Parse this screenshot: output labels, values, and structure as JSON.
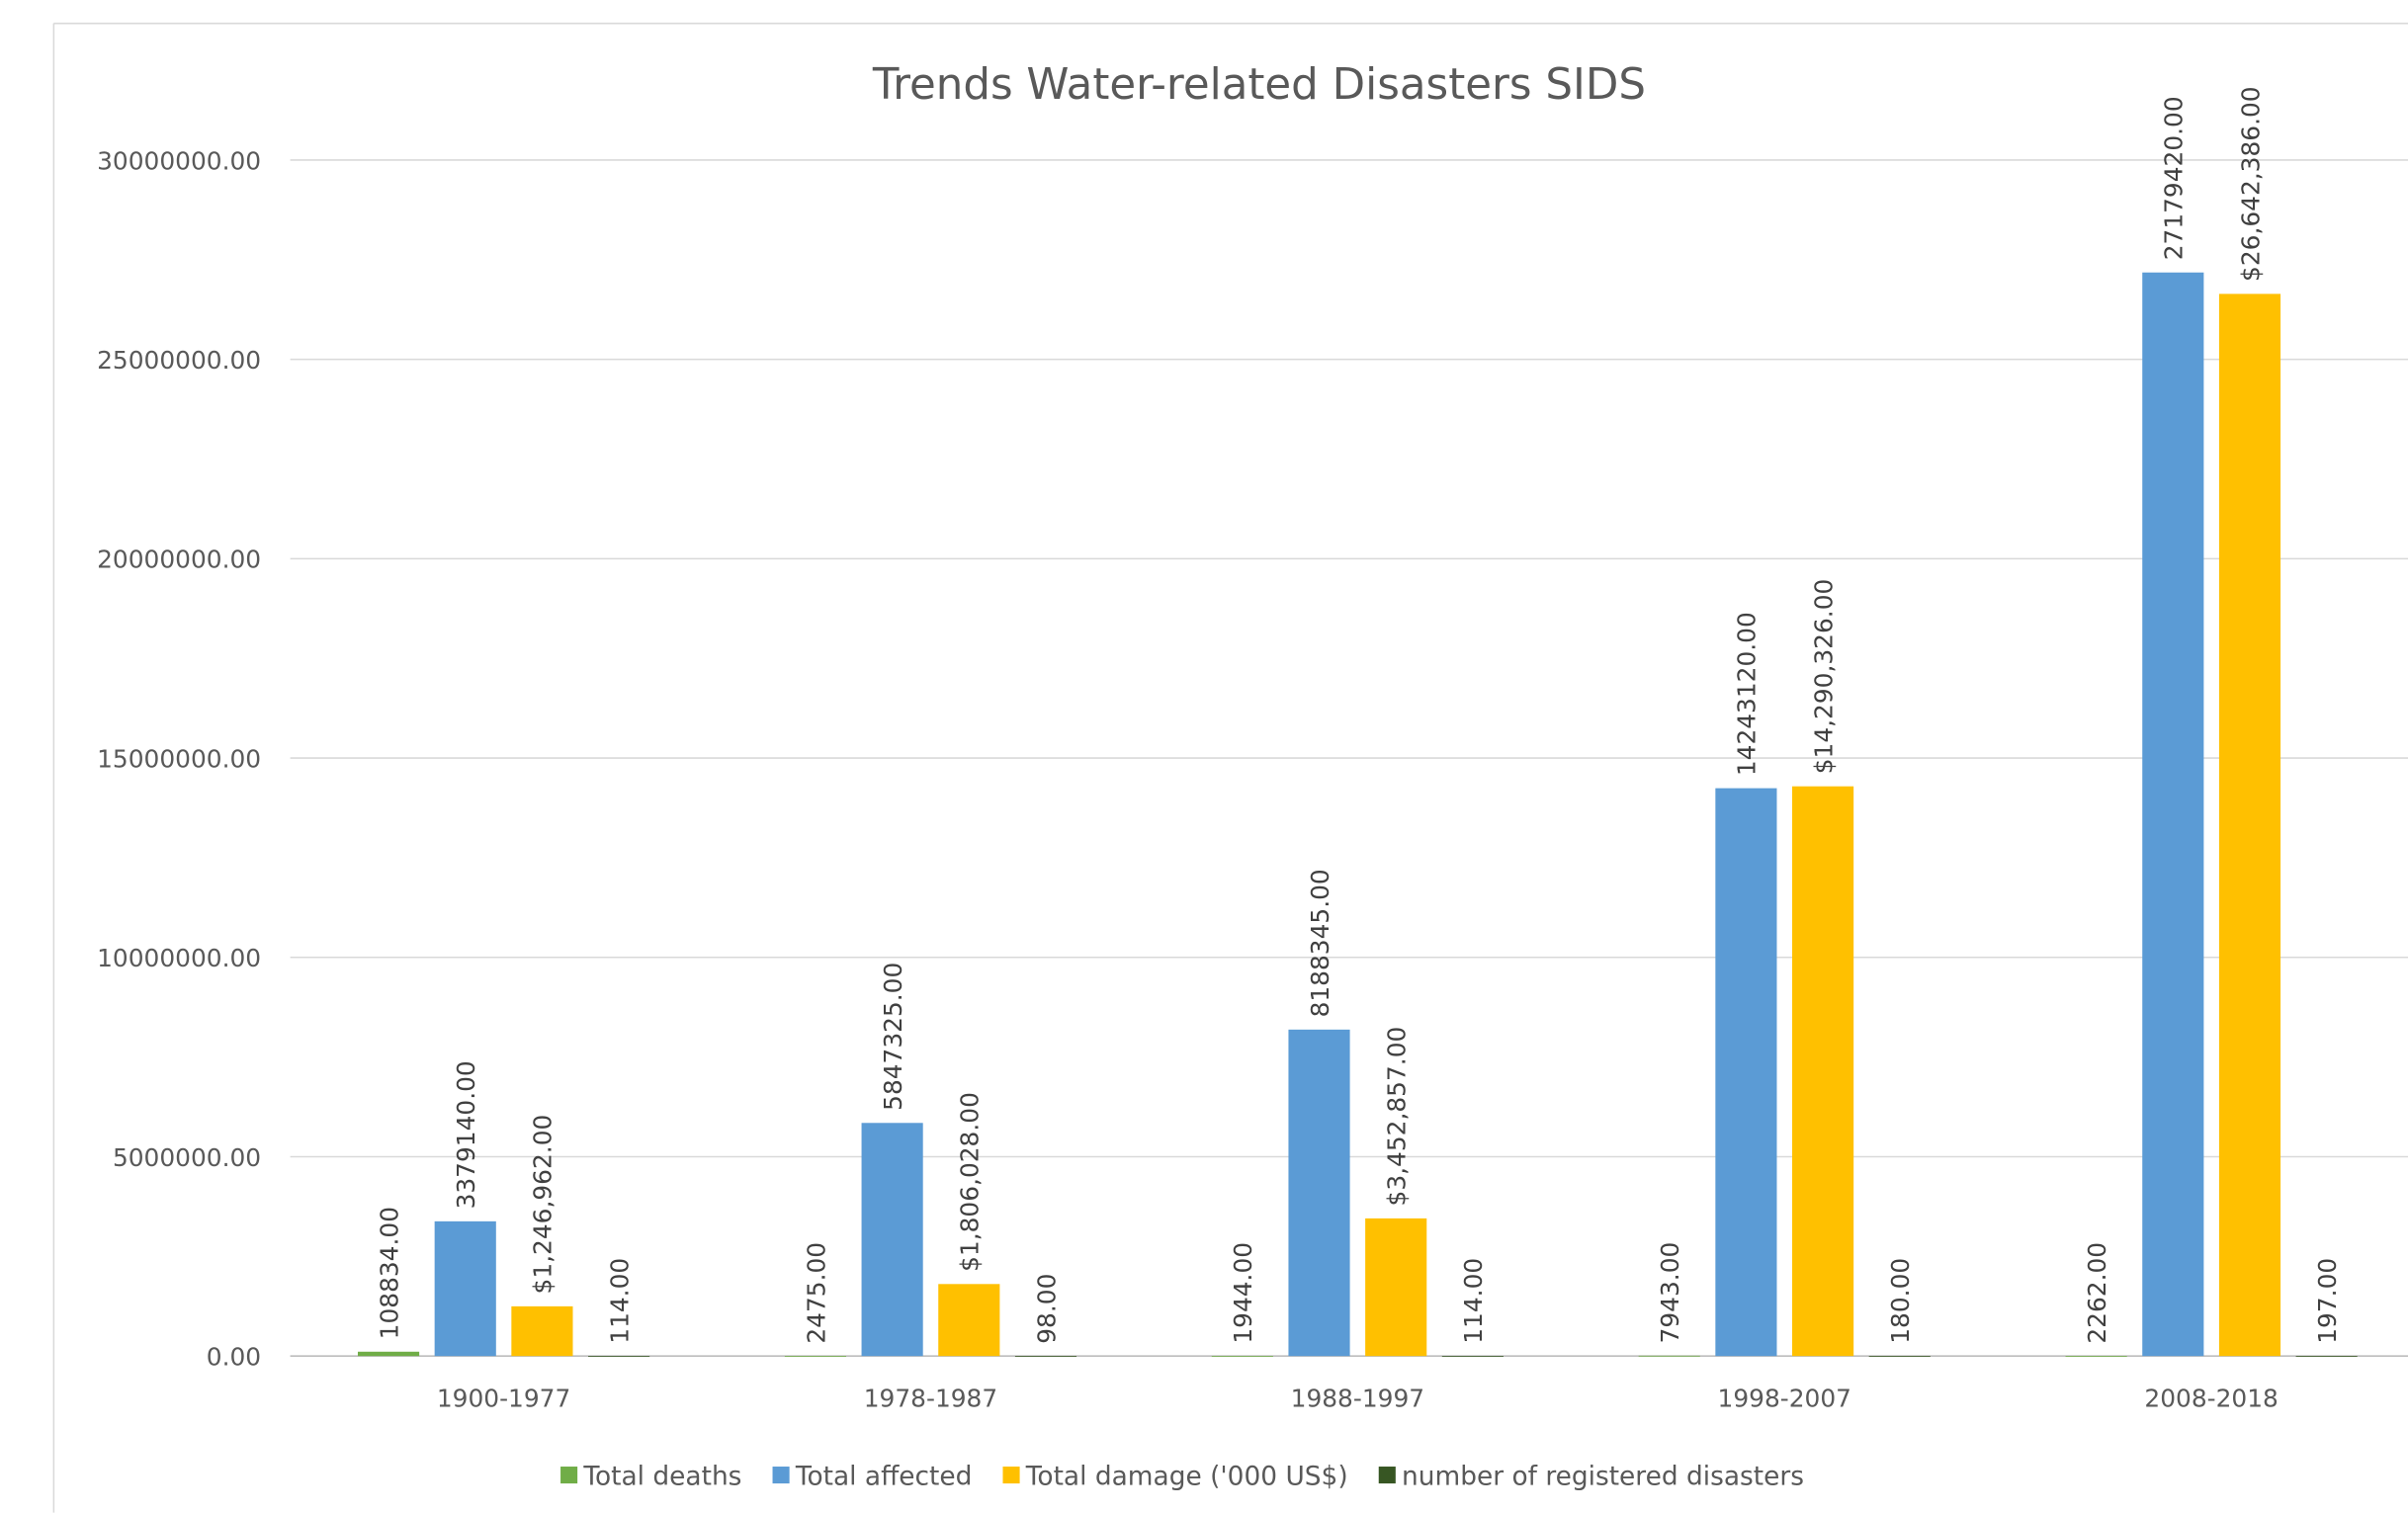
{
  "chart_data": {
    "type": "bar",
    "title": "Trends Water-related Disasters SIDS",
    "categories": [
      "1900-1977",
      "1978-1987",
      "1988-1997",
      "1998-2007",
      "2008-2018"
    ],
    "series": [
      {
        "name": "Total deaths",
        "color": "#70ad47",
        "values": [
          108834,
          2475,
          1944,
          7943,
          2262
        ],
        "value_labels": [
          "108834.00",
          "2475.00",
          "1944.00",
          "7943.00",
          "2262.00"
        ]
      },
      {
        "name": "Total affected",
        "color": "#5b9bd5",
        "values": [
          3379140,
          5847325,
          8188345,
          14243120,
          27179420
        ],
        "value_labels": [
          "3379140.00",
          "5847325.00",
          "8188345.00",
          "14243120.00",
          "27179420.00"
        ]
      },
      {
        "name": "Total damage ('000 US$)",
        "color": "#ffc000",
        "values": [
          1246962,
          1806028,
          3452857,
          14290326,
          26642386
        ],
        "value_labels": [
          "$1,246,962.00",
          "$1,806,028.00",
          "$3,452,857.00",
          "$14,290,326.00",
          "$26,642,386.00"
        ]
      },
      {
        "name": "number of registered disasters",
        "color": "#375623",
        "values": [
          114,
          98,
          114,
          180,
          197
        ],
        "value_labels": [
          "114.00",
          "98.00",
          "114.00",
          "180.00",
          "197.00"
        ]
      }
    ],
    "ylim": [
      0,
      30000000
    ],
    "yticks": [
      {
        "value": 0,
        "label": "0.00"
      },
      {
        "value": 5000000,
        "label": "5000000.00"
      },
      {
        "value": 10000000,
        "label": "10000000.00"
      },
      {
        "value": 15000000,
        "label": "15000000.00"
      },
      {
        "value": 20000000,
        "label": "20000000.00"
      },
      {
        "value": 25000000,
        "label": "25000000.00"
      },
      {
        "value": 30000000,
        "label": "30000000.00"
      }
    ],
    "grid": true,
    "legend": "bottom"
  }
}
